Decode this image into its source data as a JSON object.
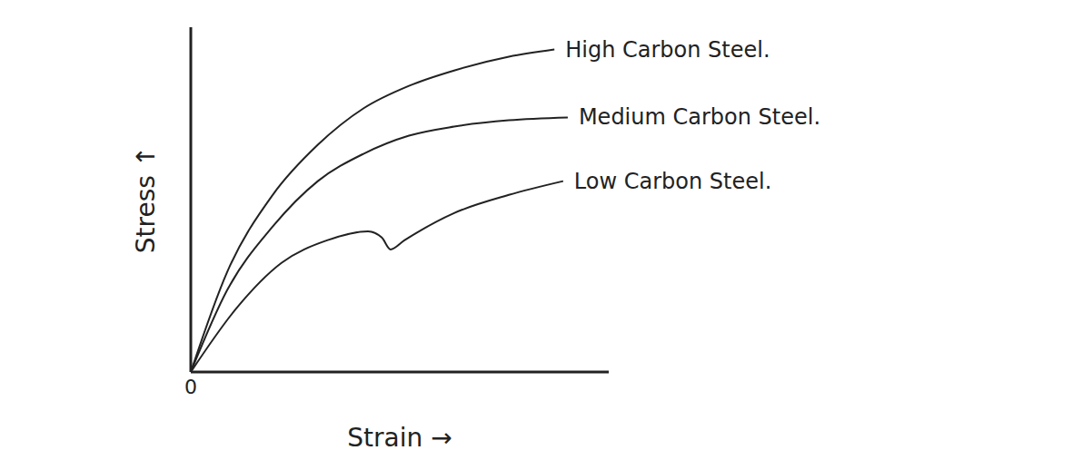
{
  "chart_data": {
    "type": "line",
    "x_label": "Strain →",
    "y_label": "Stress ↑",
    "xlim": [
      0,
      100
    ],
    "ylim": [
      0,
      110
    ],
    "xticks": [
      0
    ],
    "tick_labels": "x",
    "grid": false,
    "series": [
      {
        "name": "High Carbon Steel.",
        "color": "#222222",
        "x": [
          0,
          8.7,
          19.6,
          30.4,
          41.3,
          52.2,
          63,
          76.1,
          87
        ],
        "values": [
          0,
          31.9,
          56.5,
          72.5,
          84.1,
          91.3,
          96.2,
          100.6,
          102.9
        ]
      },
      {
        "name": "Medium Carbon Steel.",
        "color": "#222222",
        "x": [
          0,
          8.7,
          19.6,
          30.4,
          41.3,
          52.2,
          63,
          76.1,
          90.2
        ],
        "values": [
          0,
          26.1,
          46.4,
          60.9,
          69.6,
          75.4,
          78.3,
          80.3,
          81.2
        ]
      },
      {
        "name": "Low Carbon Steel.",
        "color": "#222222",
        "x": [
          0,
          10.9,
          21.7,
          32.6,
          42.4,
          45.7,
          47.8,
          51.1,
          63,
          76.1,
          89.1
        ],
        "values": [
          0,
          20.3,
          34.8,
          42.0,
          44.9,
          42.9,
          39.1,
          42.0,
          50.7,
          56.5,
          60.9
        ]
      }
    ]
  }
}
